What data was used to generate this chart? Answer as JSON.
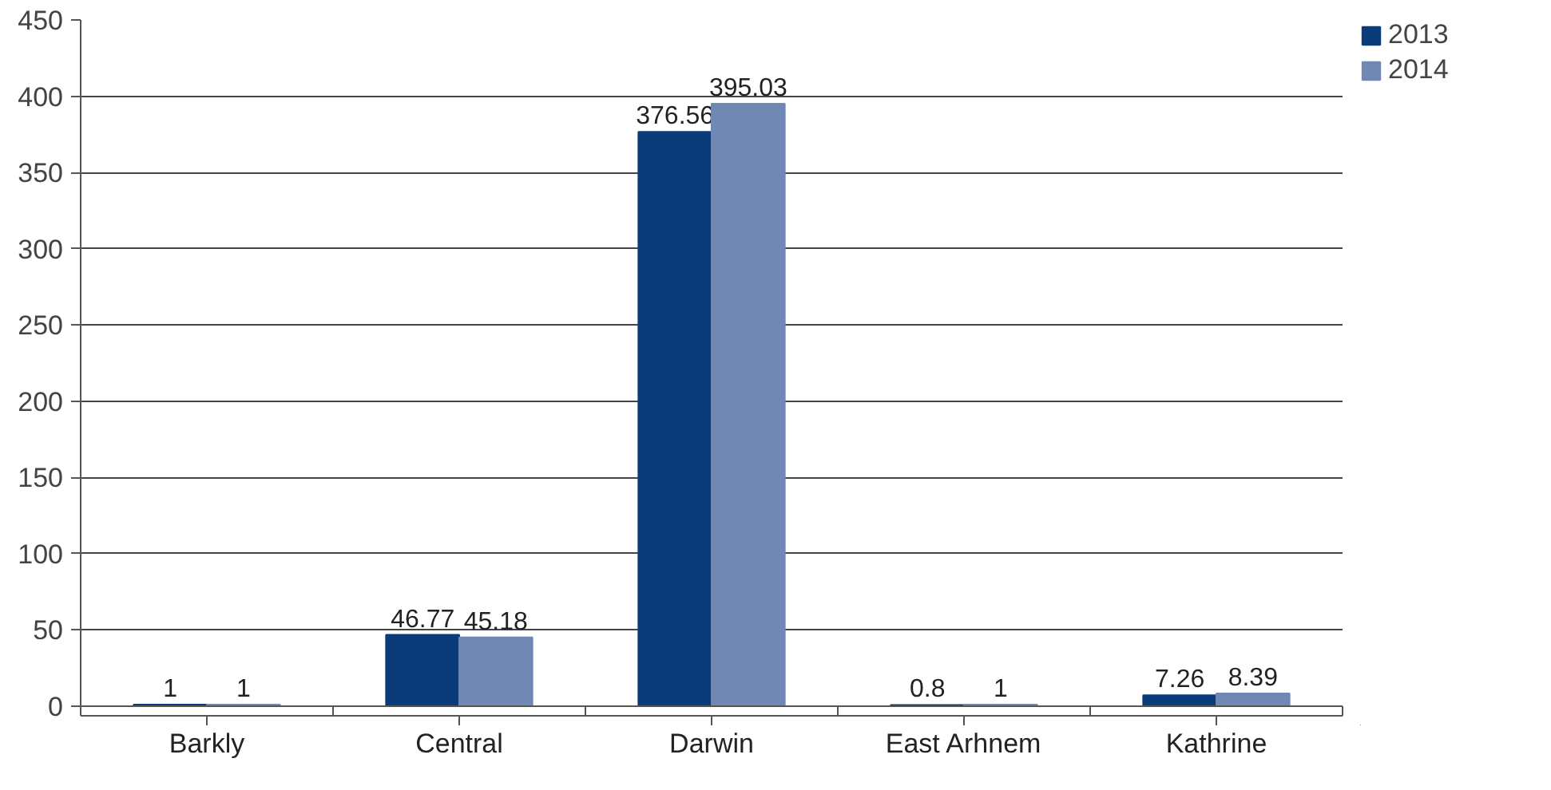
{
  "chart_data": {
    "type": "bar",
    "categories": [
      "Barkly",
      "Central",
      "Darwin",
      "East Arhnem",
      "Kathrine"
    ],
    "series": [
      {
        "name": "2013",
        "color": "#0b3c7a",
        "values": [
          1,
          46.77,
          376.56,
          0.8,
          7.26
        ]
      },
      {
        "name": "2014",
        "color": "#6f88b4",
        "values": [
          1,
          45.18,
          395.03,
          1,
          8.39
        ]
      }
    ],
    "ylim": [
      0,
      450
    ],
    "yticks": [
      0,
      50,
      100,
      150,
      200,
      250,
      300,
      350,
      400,
      450
    ],
    "grid": "y",
    "legend": "top right",
    "data_labels": true
  }
}
